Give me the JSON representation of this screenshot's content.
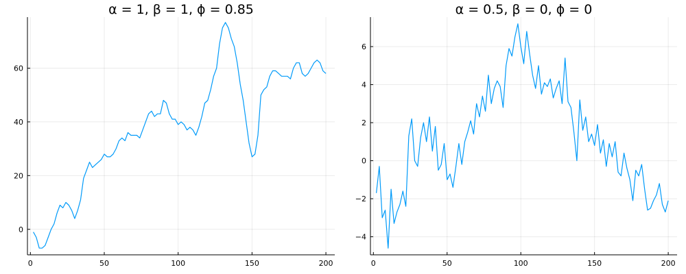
{
  "chart_data": [
    {
      "type": "line",
      "title": "α = 1, β = 1, ϕ = 0.85",
      "xlabel": "",
      "ylabel": "",
      "xlim": [
        -2,
        206
      ],
      "ylim": [
        -9.5,
        79
      ],
      "xticks": [
        0,
        50,
        100,
        150,
        200
      ],
      "yticks": [
        0,
        20,
        40,
        60
      ],
      "grid": true,
      "legend": "none",
      "series": [
        {
          "color": "#009AF9",
          "x": [
            2,
            4,
            6,
            8,
            10,
            12,
            14,
            16,
            18,
            20,
            22,
            24,
            26,
            28,
            30,
            32,
            34,
            36,
            38,
            40,
            42,
            44,
            46,
            48,
            50,
            52,
            54,
            56,
            58,
            60,
            62,
            64,
            66,
            68,
            70,
            72,
            74,
            76,
            78,
            80,
            82,
            84,
            86,
            88,
            90,
            92,
            94,
            96,
            98,
            100,
            102,
            104,
            106,
            108,
            110,
            112,
            114,
            116,
            118,
            120,
            122,
            124,
            126,
            128,
            130,
            132,
            134,
            136,
            138,
            140,
            142,
            144,
            146,
            148,
            150,
            152,
            154,
            156,
            158,
            160,
            162,
            164,
            166,
            168,
            170,
            172,
            174,
            176,
            178,
            180,
            182,
            184,
            186,
            188,
            190,
            192,
            194,
            196,
            198,
            200
          ],
          "y": [
            -1,
            -3,
            -7,
            -7,
            -6,
            -3,
            0,
            2,
            6,
            9,
            8,
            10,
            9,
            7,
            4,
            7,
            11,
            19,
            22,
            25,
            23,
            24,
            25,
            26,
            28,
            27,
            27,
            28,
            30,
            33,
            34,
            33,
            36,
            35,
            35,
            35,
            34,
            37,
            40,
            43,
            44,
            42,
            43,
            43,
            48,
            47,
            43,
            41,
            41,
            39,
            40,
            39,
            37,
            38,
            37,
            35,
            38,
            42,
            47,
            48,
            52,
            57,
            60,
            69,
            75,
            77,
            75,
            71,
            68,
            62,
            54,
            48,
            40,
            32,
            27,
            28,
            35,
            50,
            52,
            53,
            57,
            59,
            59,
            58,
            57,
            57,
            57,
            56,
            60,
            62,
            62,
            58,
            57,
            58,
            60,
            62,
            63,
            62,
            59,
            58
          ]
        }
      ]
    },
    {
      "type": "line",
      "title": "α = 0.5, β = 0, ϕ = 0",
      "xlabel": "",
      "ylabel": "",
      "xlim": [
        -2,
        206
      ],
      "ylim": [
        -4.95,
        7.55
      ],
      "xticks": [
        0,
        50,
        100,
        150,
        200
      ],
      "yticks": [
        -4,
        -2,
        0,
        2,
        4,
        6
      ],
      "grid": true,
      "legend": "none",
      "series": [
        {
          "color": "#009AF9",
          "x": [
            2,
            4,
            6,
            8,
            10,
            12,
            14,
            16,
            18,
            20,
            22,
            24,
            26,
            28,
            30,
            32,
            34,
            36,
            38,
            40,
            42,
            44,
            46,
            48,
            50,
            52,
            54,
            56,
            58,
            60,
            62,
            64,
            66,
            68,
            70,
            72,
            74,
            76,
            78,
            80,
            82,
            84,
            86,
            88,
            90,
            92,
            94,
            96,
            98,
            100,
            102,
            104,
            106,
            108,
            110,
            112,
            114,
            116,
            118,
            120,
            122,
            124,
            126,
            128,
            130,
            132,
            134,
            136,
            138,
            140,
            142,
            144,
            146,
            148,
            150,
            152,
            154,
            156,
            158,
            160,
            162,
            164,
            166,
            168,
            170,
            172,
            174,
            176,
            178,
            180,
            182,
            184,
            186,
            188,
            190,
            192,
            194,
            196,
            198,
            200
          ],
          "y": [
            -1.7,
            -0.3,
            -3.0,
            -2.6,
            -4.6,
            -1.5,
            -3.3,
            -2.7,
            -2.3,
            -1.6,
            -2.4,
            1.3,
            2.2,
            0.0,
            -0.3,
            1.2,
            2.0,
            1.0,
            2.3,
            0.5,
            1.8,
            -0.5,
            -0.2,
            0.9,
            -1.0,
            -0.7,
            -1.4,
            -0.3,
            0.9,
            -0.2,
            1.0,
            1.5,
            2.1,
            1.4,
            3.0,
            2.3,
            3.4,
            2.6,
            4.5,
            3.0,
            3.8,
            4.2,
            3.9,
            2.8,
            5.0,
            5.9,
            5.5,
            6.5,
            7.2,
            6.0,
            5.1,
            6.8,
            5.6,
            4.5,
            3.8,
            5.0,
            3.5,
            4.1,
            3.9,
            4.3,
            3.3,
            3.8,
            4.2,
            3.0,
            5.4,
            3.1,
            2.8,
            1.5,
            0.0,
            3.2,
            1.6,
            2.3,
            1.0,
            1.4,
            0.8,
            1.9,
            0.4,
            1.1,
            -0.3,
            0.9,
            0.2,
            1.0,
            -0.6,
            -0.8,
            0.4,
            -0.4,
            -1.0,
            -2.1,
            -0.5,
            -0.8,
            -0.2,
            -1.5,
            -2.6,
            -2.5,
            -2.1,
            -1.8,
            -1.2,
            -2.3,
            -2.7,
            -2.1
          ]
        }
      ]
    }
  ]
}
